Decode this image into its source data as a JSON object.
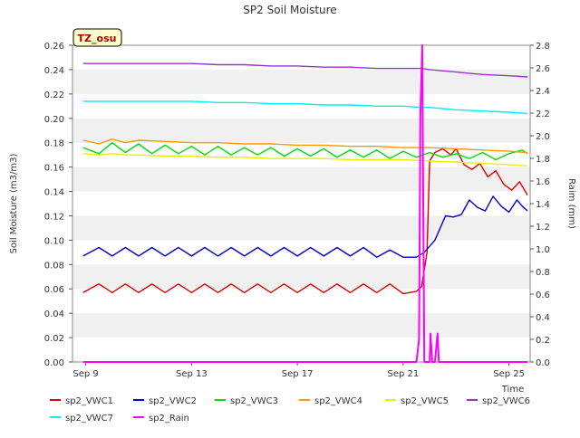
{
  "chart_data": {
    "type": "line",
    "title": "SP2 Soil Moisture",
    "station_label": "TZ_osu",
    "xlabel": "Time",
    "ylabel": "Soil Moisture (m3/m3)",
    "y2label": "Raim (mm)",
    "xlim": [
      8.5,
      25.8
    ],
    "ylim": [
      0.0,
      0.26
    ],
    "y2lim": [
      0.0,
      2.8
    ],
    "xticks": [
      {
        "value": 9,
        "label": "Sep 9"
      },
      {
        "value": 13,
        "label": "Sep 13"
      },
      {
        "value": 17,
        "label": "Sep 17"
      },
      {
        "value": 21,
        "label": "Sep 21"
      },
      {
        "value": 25,
        "label": "Sep 25"
      }
    ],
    "yticks": [
      "0.00",
      "0.02",
      "0.04",
      "0.06",
      "0.08",
      "0.10",
      "0.12",
      "0.14",
      "0.16",
      "0.18",
      "0.20",
      "0.22",
      "0.24",
      "0.26"
    ],
    "y2ticks": [
      "0.0",
      "0.2",
      "0.4",
      "0.6",
      "0.8",
      "1.0",
      "1.2",
      "1.4",
      "1.6",
      "1.8",
      "2.0",
      "2.2",
      "2.4",
      "2.6",
      "2.8"
    ],
    "grid": "horizontal alternating bands",
    "legend_position": "bottom",
    "series": [
      {
        "name": "sp2_VWC1",
        "color": "#dd0000",
        "axis": "left",
        "x": [
          8.9,
          9.5,
          10.0,
          10.5,
          11.0,
          11.5,
          12.0,
          12.5,
          13.0,
          13.5,
          14.0,
          14.5,
          15.0,
          15.5,
          16.0,
          16.5,
          17.0,
          17.5,
          18.0,
          18.5,
          19.0,
          19.5,
          20.0,
          20.5,
          21.0,
          21.5,
          21.7,
          21.9,
          22.0,
          22.2,
          22.5,
          22.8,
          23.0,
          23.3,
          23.6,
          23.9,
          24.2,
          24.5,
          24.8,
          25.1,
          25.4,
          25.7
        ],
        "y": [
          0.057,
          0.064,
          0.057,
          0.064,
          0.057,
          0.064,
          0.057,
          0.064,
          0.057,
          0.064,
          0.057,
          0.064,
          0.057,
          0.064,
          0.057,
          0.064,
          0.057,
          0.064,
          0.057,
          0.064,
          0.057,
          0.064,
          0.057,
          0.064,
          0.056,
          0.058,
          0.062,
          0.09,
          0.165,
          0.172,
          0.175,
          0.17,
          0.175,
          0.162,
          0.158,
          0.163,
          0.152,
          0.157,
          0.146,
          0.141,
          0.148,
          0.137
        ]
      },
      {
        "name": "sp2_VWC2",
        "color": "#0000cc",
        "axis": "left",
        "x": [
          8.9,
          9.5,
          10.0,
          10.5,
          11.0,
          11.5,
          12.0,
          12.5,
          13.0,
          13.5,
          14.0,
          14.5,
          15.0,
          15.5,
          16.0,
          16.5,
          17.0,
          17.5,
          18.0,
          18.5,
          19.0,
          19.5,
          20.0,
          20.5,
          21.0,
          21.5,
          21.8,
          22.2,
          22.6,
          22.9,
          23.2,
          23.5,
          23.8,
          24.1,
          24.4,
          24.7,
          25.0,
          25.3,
          25.5,
          25.7
        ],
        "y": [
          0.087,
          0.094,
          0.087,
          0.094,
          0.087,
          0.094,
          0.087,
          0.094,
          0.087,
          0.094,
          0.087,
          0.094,
          0.087,
          0.094,
          0.087,
          0.094,
          0.087,
          0.094,
          0.087,
          0.094,
          0.087,
          0.094,
          0.086,
          0.092,
          0.086,
          0.086,
          0.09,
          0.1,
          0.12,
          0.119,
          0.121,
          0.133,
          0.127,
          0.124,
          0.136,
          0.128,
          0.123,
          0.133,
          0.128,
          0.124
        ]
      },
      {
        "name": "sp2_VWC3",
        "color": "#00dd00",
        "axis": "left",
        "x": [
          8.9,
          9.5,
          10.0,
          10.5,
          11.0,
          11.5,
          12.0,
          12.5,
          13.0,
          13.5,
          14.0,
          14.5,
          15.0,
          15.5,
          16.0,
          16.5,
          17.0,
          17.5,
          18.0,
          18.5,
          19.0,
          19.5,
          20.0,
          20.5,
          21.0,
          21.5,
          22.0,
          22.5,
          23.0,
          23.5,
          24.0,
          24.5,
          25.0,
          25.5,
          25.7
        ],
        "y": [
          0.176,
          0.171,
          0.18,
          0.172,
          0.179,
          0.171,
          0.178,
          0.171,
          0.177,
          0.17,
          0.177,
          0.17,
          0.176,
          0.17,
          0.176,
          0.169,
          0.175,
          0.169,
          0.175,
          0.168,
          0.174,
          0.168,
          0.174,
          0.167,
          0.173,
          0.168,
          0.172,
          0.168,
          0.171,
          0.167,
          0.172,
          0.166,
          0.171,
          0.174,
          0.171
        ]
      },
      {
        "name": "sp2_VWC4",
        "color": "#ff9900",
        "axis": "left",
        "x": [
          8.9,
          9.5,
          10.0,
          10.5,
          11.0,
          12.0,
          13.0,
          14.0,
          15.0,
          16.0,
          17.0,
          18.0,
          19.0,
          20.0,
          21.0,
          22.0,
          23.0,
          24.0,
          25.0,
          25.7
        ],
        "y": [
          0.182,
          0.179,
          0.183,
          0.18,
          0.182,
          0.181,
          0.18,
          0.18,
          0.179,
          0.179,
          0.178,
          0.178,
          0.177,
          0.177,
          0.176,
          0.176,
          0.175,
          0.174,
          0.173,
          0.172
        ]
      },
      {
        "name": "sp2_VWC5",
        "color": "#eeee00",
        "axis": "left",
        "x": [
          8.9,
          9.5,
          10.0,
          10.5,
          11.0,
          12.0,
          13.0,
          14.0,
          15.0,
          16.0,
          17.0,
          18.0,
          19.0,
          20.0,
          21.0,
          22.0,
          23.0,
          24.0,
          25.0,
          25.7
        ],
        "y": [
          0.171,
          0.17,
          0.171,
          0.17,
          0.17,
          0.169,
          0.169,
          0.168,
          0.168,
          0.167,
          0.167,
          0.167,
          0.166,
          0.166,
          0.166,
          0.165,
          0.164,
          0.163,
          0.162,
          0.161
        ]
      },
      {
        "name": "sp2_VWC6",
        "color": "#9933cc",
        "axis": "left",
        "x": [
          8.9,
          10.0,
          11.0,
          12.0,
          13.0,
          14.0,
          15.0,
          16.0,
          17.0,
          18.0,
          19.0,
          20.0,
          21.0,
          21.7,
          22.0,
          23.0,
          24.0,
          25.0,
          25.7
        ],
        "y": [
          0.245,
          0.245,
          0.245,
          0.245,
          0.245,
          0.244,
          0.244,
          0.243,
          0.243,
          0.242,
          0.242,
          0.241,
          0.241,
          0.241,
          0.24,
          0.238,
          0.236,
          0.235,
          0.234
        ]
      },
      {
        "name": "sp2_VWC7",
        "color": "#00eeee",
        "axis": "left",
        "x": [
          8.9,
          10.0,
          11.0,
          12.0,
          13.0,
          14.0,
          15.0,
          16.0,
          17.0,
          18.0,
          19.0,
          20.0,
          21.0,
          21.7,
          22.0,
          23.0,
          24.0,
          25.0,
          25.7
        ],
        "y": [
          0.214,
          0.214,
          0.214,
          0.214,
          0.214,
          0.213,
          0.213,
          0.212,
          0.212,
          0.211,
          0.211,
          0.21,
          0.21,
          0.209,
          0.209,
          0.207,
          0.206,
          0.205,
          0.204
        ]
      },
      {
        "name": "sp2_Rain",
        "color": "#ff00ff",
        "axis": "right",
        "x": [
          8.9,
          21.5,
          21.6,
          21.65,
          21.72,
          21.8,
          21.9,
          22.0,
          22.03,
          22.1,
          22.17,
          22.2,
          22.3,
          22.35,
          22.4,
          25.7
        ],
        "y": [
          0.0,
          0.0,
          0.2,
          2.2,
          2.8,
          0.0,
          0.0,
          0.0,
          0.25,
          0.0,
          0.0,
          0.0,
          0.25,
          0.0,
          0.0,
          0.0
        ]
      }
    ]
  }
}
